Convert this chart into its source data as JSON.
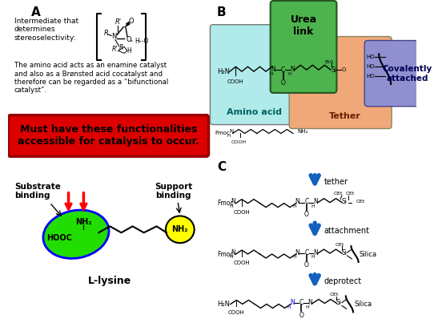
{
  "background": "#ffffff",
  "panel_A": {
    "label": "A",
    "text1": "Intermediate that\ndetermines\nstereoselectivity:",
    "text2": "The amino acid acts as an enamine catalyst\nand also as a Brønsted acid cocatalyst and\ntherefore can be regarded as a “bifunctional\ncatalyst”.",
    "red_box_text": "Must have these functionalities\naccessible for catalysis to occur.",
    "substrate_binding": "Substrate\nbinding",
    "support_binding": "Support\nbinding",
    "llysine_label": "L-lysine",
    "hooc_label": "HOOC",
    "nh2_label1": "NH₂",
    "nh2_label2": "NH₂"
  },
  "panel_B": {
    "label": "B",
    "urea_link_text": "Urea\nlink",
    "amino_acid_text": "Amino acid",
    "tether_text": "Tether",
    "covalently_attached_text": "Covalently\nattached",
    "colors": {
      "urea_link": "#4db34d",
      "amino_acid": "#b0eaea",
      "tether": "#f0a878",
      "covalently_attached": "#9090d0"
    }
  },
  "panel_C": {
    "label": "C",
    "arrow_labels": [
      "tether",
      "attachment",
      "deprotect"
    ],
    "arrow_color": "#1560bd"
  }
}
